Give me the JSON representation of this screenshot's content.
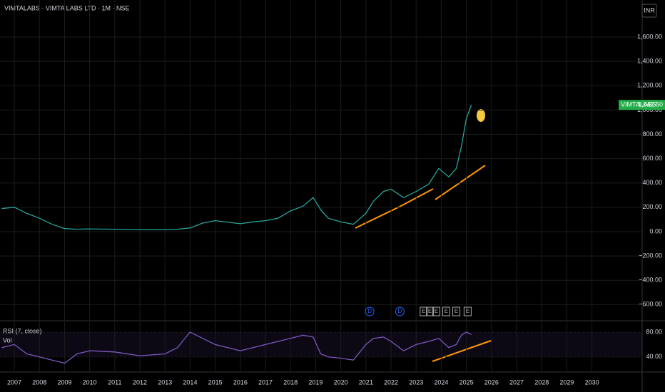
{
  "chart_data": [
    {
      "type": "line",
      "title": "VIMTALABS · VIMTA LABS LTD · 1M · NSE",
      "currency": "INR",
      "series": [
        {
          "name": "VIMTALABS",
          "color": "#26a69a",
          "values": [
            190,
            200,
            150,
            110,
            60,
            25,
            20,
            22,
            20,
            15,
            15,
            20,
            30,
            70,
            90,
            65,
            80,
            90,
            110,
            170,
            210,
            280,
            180,
            110,
            80,
            60,
            150,
            250,
            330,
            350,
            280,
            330,
            390,
            520,
            450,
            520,
            700,
            930,
            1042.5
          ]
        }
      ],
      "x": [
        2006.5,
        2007,
        2007.5,
        2008,
        2008.5,
        2009,
        2009.5,
        2010,
        2011,
        2012,
        2013,
        2013.5,
        2014,
        2014.5,
        2015,
        2016,
        2016.5,
        2017,
        2017.5,
        2018,
        2018.5,
        2018.9,
        2019.2,
        2019.5,
        2020,
        2020.5,
        2021,
        2021.3,
        2021.7,
        2022,
        2022.5,
        2023,
        2023.5,
        2023.9,
        2024.3,
        2024.6,
        2024.8,
        2025,
        2025.2
      ],
      "last_value_label": "1,042.50",
      "xlim": [
        2006.43,
        2032
      ],
      "xticks": [
        2007,
        2008,
        2009,
        2010,
        2011,
        2012,
        2013,
        2014,
        2015,
        2016,
        2017,
        2018,
        2019,
        2020,
        2021,
        2022,
        2023,
        2024,
        2025,
        2026,
        2027,
        2028,
        2029,
        2030
      ],
      "ylim": [
        -733,
        1905
      ],
      "yticks": [
        {
          "value": -600,
          "label": "−600.00"
        },
        {
          "value": -400,
          "label": "−400.00"
        },
        {
          "value": -200,
          "label": "−200.00"
        },
        {
          "value": 0,
          "label": "0.00"
        },
        {
          "value": 200,
          "label": "200.00"
        },
        {
          "value": 400,
          "label": "400.00"
        },
        {
          "value": 600,
          "label": "600.00"
        },
        {
          "value": 800,
          "label": "800.00"
        },
        {
          "value": 1000,
          "label": "1,000.00"
        },
        {
          "value": 1200,
          "label": "1,200.00"
        },
        {
          "value": 1400,
          "label": "1,400.00"
        },
        {
          "value": 1600,
          "label": "1,600.00"
        }
      ],
      "grid": true,
      "events": [
        {
          "label": "D",
          "x": 2021.15
        },
        {
          "label": "D",
          "x": 2022.35
        },
        {
          "label": "E",
          "x": 2023.3
        },
        {
          "label": "E",
          "x": 2023.55
        },
        {
          "label": "E",
          "x": 2023.8
        },
        {
          "label": "E",
          "x": 2024.2
        },
        {
          "label": "E",
          "x": 2024.6
        },
        {
          "label": "E",
          "x": 2025.05
        }
      ]
    },
    {
      "type": "line",
      "title": "RSI (7, close)",
      "subtitle": "Vol",
      "series": [
        {
          "name": "RSI",
          "color": "#7e57c2",
          "values": [
            55,
            60,
            45,
            40,
            35,
            30,
            45,
            50,
            48,
            42,
            45,
            55,
            80,
            70,
            60,
            50,
            55,
            60,
            65,
            70,
            75,
            72,
            45,
            40,
            38,
            35,
            60,
            70,
            72,
            65,
            50,
            60,
            65,
            70,
            55,
            60,
            75,
            80,
            76
          ]
        }
      ],
      "x": [
        2006.5,
        2007,
        2007.5,
        2008,
        2008.5,
        2009,
        2009.5,
        2010,
        2011,
        2012,
        2013,
        2013.5,
        2014,
        2014.5,
        2015,
        2016,
        2016.5,
        2017,
        2017.5,
        2018,
        2018.5,
        2018.9,
        2019.2,
        2019.5,
        2020,
        2020.5,
        2021,
        2021.3,
        2021.7,
        2022,
        2022.5,
        2023,
        2023.5,
        2023.9,
        2024.3,
        2024.6,
        2024.8,
        2025,
        2025.2
      ],
      "xlim": [
        2006.43,
        2032
      ],
      "ylim": [
        18,
        96
      ],
      "yticks": [
        {
          "value": 40,
          "label": "40.00"
        },
        {
          "value": 80,
          "label": "80.00"
        }
      ],
      "grid": true
    }
  ]
}
